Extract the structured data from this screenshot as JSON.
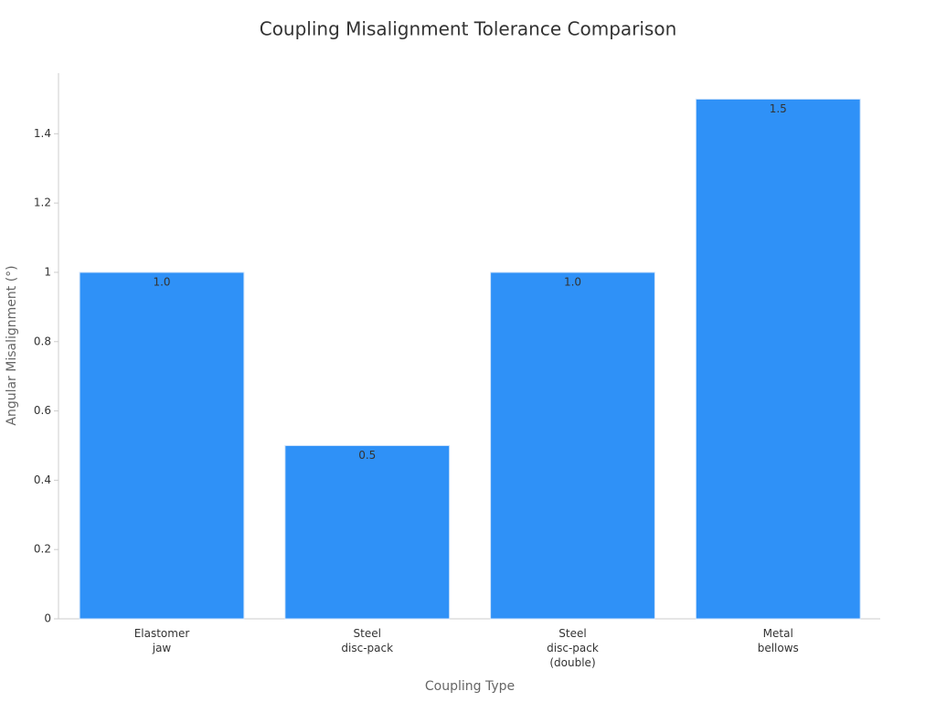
{
  "chart_data": {
    "type": "bar",
    "title": "Coupling Misalignment Tolerance Comparison",
    "x_label": "Coupling Type",
    "y_label": "Angular Misalignment (°)",
    "categories": [
      "Elastomer\njaw",
      "Steel\ndisc-pack",
      "Steel\ndisc-pack\n(double)",
      "Metal\nbellows"
    ],
    "values": [
      1.0,
      0.5,
      1.0,
      1.5
    ],
    "value_labels": [
      "1.0",
      "0.5",
      "1.0",
      "1.5"
    ],
    "color": "#2f91f7",
    "ylim": [
      0,
      1.575
    ],
    "yticks": [
      0,
      0.2,
      0.4,
      0.6,
      0.8,
      1,
      1.2,
      1.4
    ],
    "grid": false
  }
}
